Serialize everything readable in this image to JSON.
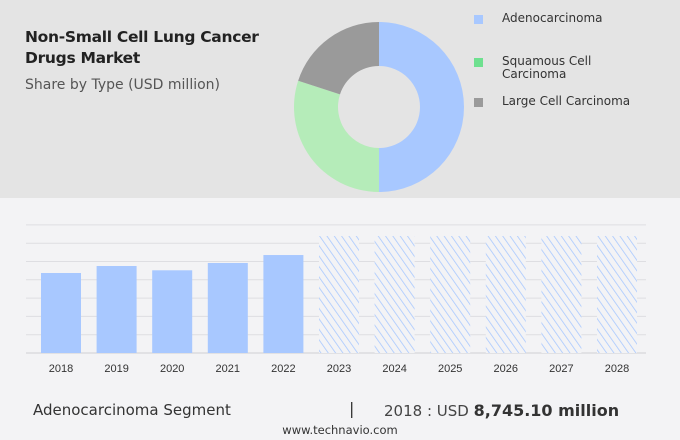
{
  "header": {
    "title": "Non-Small Cell Lung Cancer Drugs Market",
    "subtitle": "Share by Type (USD million)"
  },
  "chart_data": [
    {
      "type": "pie",
      "donut": true,
      "categories": [
        "Adenocarcinoma",
        "Squamous Cell Carcinoma",
        "Large Cell Carcinoma"
      ],
      "values": [
        50,
        30,
        20
      ],
      "colors": [
        "#a8c8ff",
        "#b5ecb9",
        "#9a9a9a"
      ],
      "legend_colors": [
        "#a8c8ff",
        "#6ee08f",
        "#9a9a9a"
      ],
      "legend_placement": "right"
    },
    {
      "type": "bar",
      "categories": [
        "2018",
        "2019",
        "2020",
        "2021",
        "2022",
        "2023",
        "2024",
        "2025",
        "2026",
        "2027",
        "2028"
      ],
      "values": [
        8745.1,
        9510,
        9040,
        9840,
        10710,
        null,
        null,
        null,
        null,
        null,
        null
      ],
      "forecast_years": [
        "2023",
        "2024",
        "2025",
        "2026",
        "2027",
        "2028"
      ],
      "forecast_style": "hatched",
      "color": "#a8c8ff",
      "grid": true
    }
  ],
  "footer": {
    "segment": "Adenocarcinoma Segment",
    "separator": "|",
    "year_label": "2018 : USD",
    "value": "8,745.10 million",
    "url": "www.technavio.com"
  }
}
